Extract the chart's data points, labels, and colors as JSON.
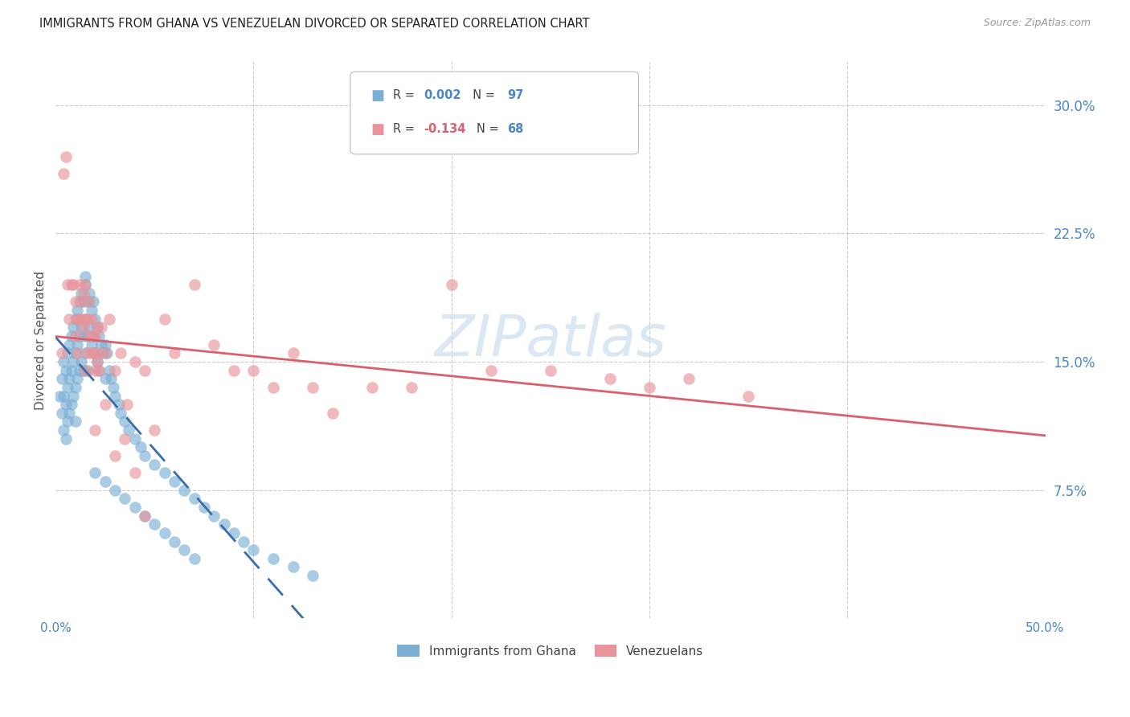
{
  "title": "IMMIGRANTS FROM GHANA VS VENEZUELAN DIVORCED OR SEPARATED CORRELATION CHART",
  "source": "Source: ZipAtlas.com",
  "ylabel": "Divorced or Separated",
  "ytick_labels": [
    "30.0%",
    "22.5%",
    "15.0%",
    "7.5%"
  ],
  "ytick_values": [
    0.3,
    0.225,
    0.15,
    0.075
  ],
  "xlim": [
    0.0,
    0.5
  ],
  "ylim": [
    0.0,
    0.325
  ],
  "color_blue": "#7bafd4",
  "color_pink": "#e8949a",
  "color_blue_line": "#3a6eaa",
  "color_pink_line": "#d9606e",
  "watermark_text": "ZIPatlas",
  "watermark_color": "#ccdded",
  "title_fontsize": 10.5,
  "source_fontsize": 9,
  "legend_r_blue": "R = ",
  "legend_r_blue_val": "0.002",
  "legend_n_blue": "  N = ",
  "legend_n_blue_val": "97",
  "legend_r_pink": "R = ",
  "legend_r_pink_val": "-0.134",
  "legend_n_pink": "  N = ",
  "legend_n_pink_val": "68",
  "blue_x": [
    0.002,
    0.003,
    0.003,
    0.004,
    0.004,
    0.004,
    0.005,
    0.005,
    0.005,
    0.006,
    0.006,
    0.006,
    0.007,
    0.007,
    0.007,
    0.008,
    0.008,
    0.008,
    0.009,
    0.009,
    0.009,
    0.01,
    0.01,
    0.01,
    0.01,
    0.011,
    0.011,
    0.011,
    0.012,
    0.012,
    0.012,
    0.013,
    0.013,
    0.013,
    0.014,
    0.014,
    0.014,
    0.015,
    0.015,
    0.015,
    0.016,
    0.016,
    0.016,
    0.017,
    0.017,
    0.018,
    0.018,
    0.019,
    0.019,
    0.02,
    0.02,
    0.021,
    0.021,
    0.022,
    0.022,
    0.023,
    0.024,
    0.025,
    0.025,
    0.026,
    0.027,
    0.028,
    0.029,
    0.03,
    0.032,
    0.033,
    0.035,
    0.037,
    0.04,
    0.043,
    0.045,
    0.05,
    0.055,
    0.06,
    0.065,
    0.07,
    0.075,
    0.08,
    0.085,
    0.09,
    0.095,
    0.1,
    0.11,
    0.12,
    0.13,
    0.015,
    0.02,
    0.025,
    0.03,
    0.035,
    0.04,
    0.045,
    0.05,
    0.055,
    0.06,
    0.065,
    0.07
  ],
  "blue_y": [
    0.13,
    0.14,
    0.12,
    0.15,
    0.13,
    0.11,
    0.145,
    0.125,
    0.105,
    0.155,
    0.135,
    0.115,
    0.16,
    0.14,
    0.12,
    0.165,
    0.145,
    0.125,
    0.17,
    0.15,
    0.13,
    0.175,
    0.155,
    0.135,
    0.115,
    0.18,
    0.16,
    0.14,
    0.185,
    0.165,
    0.145,
    0.19,
    0.17,
    0.15,
    0.185,
    0.165,
    0.145,
    0.195,
    0.175,
    0.155,
    0.185,
    0.165,
    0.145,
    0.19,
    0.17,
    0.18,
    0.16,
    0.185,
    0.165,
    0.175,
    0.155,
    0.17,
    0.15,
    0.165,
    0.145,
    0.16,
    0.155,
    0.16,
    0.14,
    0.155,
    0.145,
    0.14,
    0.135,
    0.13,
    0.125,
    0.12,
    0.115,
    0.11,
    0.105,
    0.1,
    0.095,
    0.09,
    0.085,
    0.08,
    0.075,
    0.07,
    0.065,
    0.06,
    0.055,
    0.05,
    0.045,
    0.04,
    0.035,
    0.03,
    0.025,
    0.2,
    0.085,
    0.08,
    0.075,
    0.07,
    0.065,
    0.06,
    0.055,
    0.05,
    0.045,
    0.04,
    0.035
  ],
  "pink_x": [
    0.003,
    0.004,
    0.005,
    0.006,
    0.007,
    0.008,
    0.009,
    0.01,
    0.01,
    0.011,
    0.011,
    0.012,
    0.012,
    0.013,
    0.013,
    0.014,
    0.014,
    0.015,
    0.015,
    0.016,
    0.016,
    0.017,
    0.017,
    0.018,
    0.018,
    0.019,
    0.019,
    0.02,
    0.02,
    0.021,
    0.021,
    0.022,
    0.022,
    0.023,
    0.025,
    0.027,
    0.03,
    0.033,
    0.036,
    0.04,
    0.045,
    0.05,
    0.055,
    0.06,
    0.07,
    0.08,
    0.09,
    0.1,
    0.11,
    0.12,
    0.13,
    0.14,
    0.16,
    0.18,
    0.2,
    0.22,
    0.25,
    0.28,
    0.3,
    0.32,
    0.35,
    0.015,
    0.02,
    0.025,
    0.03,
    0.035,
    0.04,
    0.045
  ],
  "pink_y": [
    0.155,
    0.26,
    0.27,
    0.195,
    0.175,
    0.195,
    0.195,
    0.185,
    0.165,
    0.175,
    0.155,
    0.175,
    0.195,
    0.175,
    0.185,
    0.19,
    0.17,
    0.175,
    0.195,
    0.175,
    0.155,
    0.165,
    0.185,
    0.155,
    0.175,
    0.165,
    0.155,
    0.165,
    0.145,
    0.17,
    0.15,
    0.155,
    0.145,
    0.17,
    0.155,
    0.175,
    0.145,
    0.155,
    0.125,
    0.15,
    0.145,
    0.11,
    0.175,
    0.155,
    0.195,
    0.16,
    0.145,
    0.145,
    0.135,
    0.155,
    0.135,
    0.12,
    0.135,
    0.135,
    0.195,
    0.145,
    0.145,
    0.14,
    0.135,
    0.14,
    0.13,
    0.145,
    0.11,
    0.125,
    0.095,
    0.105,
    0.085,
    0.06
  ]
}
